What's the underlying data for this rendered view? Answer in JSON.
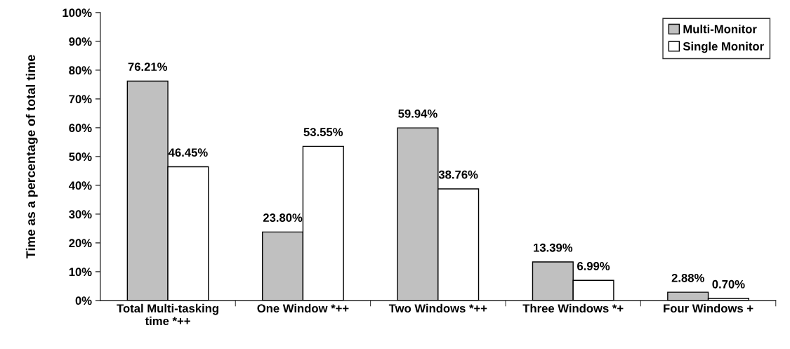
{
  "chart_data": {
    "type": "bar",
    "ylabel": "Time as a percentage of total time",
    "categories": [
      "Total Multi-tasking\ntime *++",
      "One Window *++",
      "Two Windows *++",
      "Three Windows *+",
      "Four Windows +"
    ],
    "series": [
      {
        "name": "Multi-Monitor",
        "color": "#c0c0c0",
        "values": [
          76.21,
          23.8,
          59.94,
          13.39,
          2.88
        ],
        "value_labels": [
          "76.21%",
          "23.80%",
          "59.94%",
          "13.39%",
          "2.88%"
        ]
      },
      {
        "name": "Single Monitor",
        "color": "#ffffff",
        "values": [
          46.45,
          53.55,
          38.76,
          6.99,
          0.7
        ],
        "value_labels": [
          "46.45%",
          "53.55%",
          "38.76%",
          "6.99%",
          "0.70%"
        ]
      }
    ],
    "ylim": [
      0,
      100
    ],
    "yticks": [
      {
        "value": 0,
        "label": "0%"
      },
      {
        "value": 10,
        "label": "10%"
      },
      {
        "value": 20,
        "label": "20%"
      },
      {
        "value": 30,
        "label": "30%"
      },
      {
        "value": 40,
        "label": "40%"
      },
      {
        "value": 50,
        "label": "50%"
      },
      {
        "value": 60,
        "label": "60%"
      },
      {
        "value": 70,
        "label": "70%"
      },
      {
        "value": 80,
        "label": "80%"
      },
      {
        "value": 90,
        "label": "90%"
      },
      {
        "value": 100,
        "label": "100%"
      }
    ],
    "grid": false,
    "legend": "top right"
  }
}
